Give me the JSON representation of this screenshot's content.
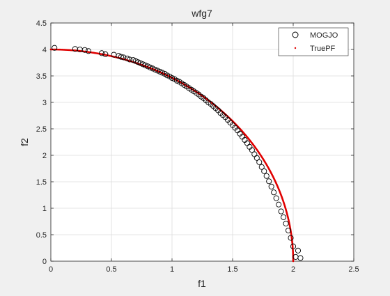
{
  "chart_data": {
    "type": "scatter",
    "title": "wfg7",
    "xlabel": "f1",
    "ylabel": "f2",
    "xlim": [
      0,
      2.5
    ],
    "ylim": [
      0,
      4.5
    ],
    "xticks": [
      0,
      0.5,
      1,
      1.5,
      2,
      2.5
    ],
    "yticks": [
      0,
      0.5,
      1,
      1.5,
      2,
      2.5,
      3,
      3.5,
      4,
      4.5
    ],
    "xtick_labels": [
      "0",
      "0.5",
      "1",
      "1.5",
      "2",
      "2.5"
    ],
    "ytick_labels": [
      "0",
      "0.5",
      "1",
      "1.5",
      "2",
      "2.5",
      "3",
      "3.5",
      "4",
      "4.5"
    ],
    "grid": true,
    "legend_position": "top-right",
    "series": [
      {
        "name": "MOGJO",
        "marker": "open-circle",
        "color": "#000000",
        "x": [
          0.03,
          0.2,
          0.24,
          0.28,
          0.31,
          0.42,
          0.45,
          0.52,
          0.56,
          0.58,
          0.6,
          0.63,
          0.65,
          0.68,
          0.7,
          0.72,
          0.74,
          0.76,
          0.78,
          0.8,
          0.82,
          0.84,
          0.86,
          0.88,
          0.9,
          0.92,
          0.94,
          0.96,
          0.98,
          1.0,
          1.02,
          1.04,
          1.06,
          1.08,
          1.1,
          1.12,
          1.14,
          1.16,
          1.18,
          1.2,
          1.22,
          1.24,
          1.26,
          1.28,
          1.3,
          1.32,
          1.34,
          1.36,
          1.38,
          1.4,
          1.42,
          1.44,
          1.46,
          1.48,
          1.5,
          1.52,
          1.54,
          1.56,
          1.58,
          1.6,
          1.62,
          1.64,
          1.66,
          1.68,
          1.7,
          1.72,
          1.74,
          1.76,
          1.78,
          1.8,
          1.82,
          1.84,
          1.86,
          1.88,
          1.9,
          1.92,
          1.94,
          1.96,
          1.98,
          2.0,
          2.02,
          2.04,
          2.06
        ],
        "y": [
          4.03,
          4.01,
          4.0,
          3.99,
          3.97,
          3.93,
          3.91,
          3.9,
          3.88,
          3.86,
          3.85,
          3.83,
          3.81,
          3.8,
          3.78,
          3.76,
          3.74,
          3.72,
          3.7,
          3.68,
          3.66,
          3.64,
          3.62,
          3.6,
          3.58,
          3.56,
          3.54,
          3.51,
          3.49,
          3.46,
          3.44,
          3.41,
          3.39,
          3.36,
          3.33,
          3.3,
          3.27,
          3.24,
          3.21,
          3.18,
          3.15,
          3.11,
          3.08,
          3.04,
          3.0,
          2.97,
          2.93,
          2.89,
          2.85,
          2.8,
          2.76,
          2.72,
          2.67,
          2.62,
          2.57,
          2.52,
          2.47,
          2.41,
          2.35,
          2.29,
          2.23,
          2.16,
          2.1,
          2.02,
          1.95,
          1.87,
          1.78,
          1.7,
          1.61,
          1.51,
          1.41,
          1.3,
          1.19,
          1.07,
          0.94,
          0.83,
          0.71,
          0.58,
          0.44,
          0.28,
          0.08,
          0.2,
          0.06
        ]
      },
      {
        "name": "TruePF",
        "marker": "dot",
        "color": "#e00000",
        "curve": "quarter ellipse from (0,4) to (2,0)"
      }
    ]
  },
  "legend": {
    "items": [
      {
        "label": "MOGJO"
      },
      {
        "label": "TruePF"
      }
    ]
  }
}
